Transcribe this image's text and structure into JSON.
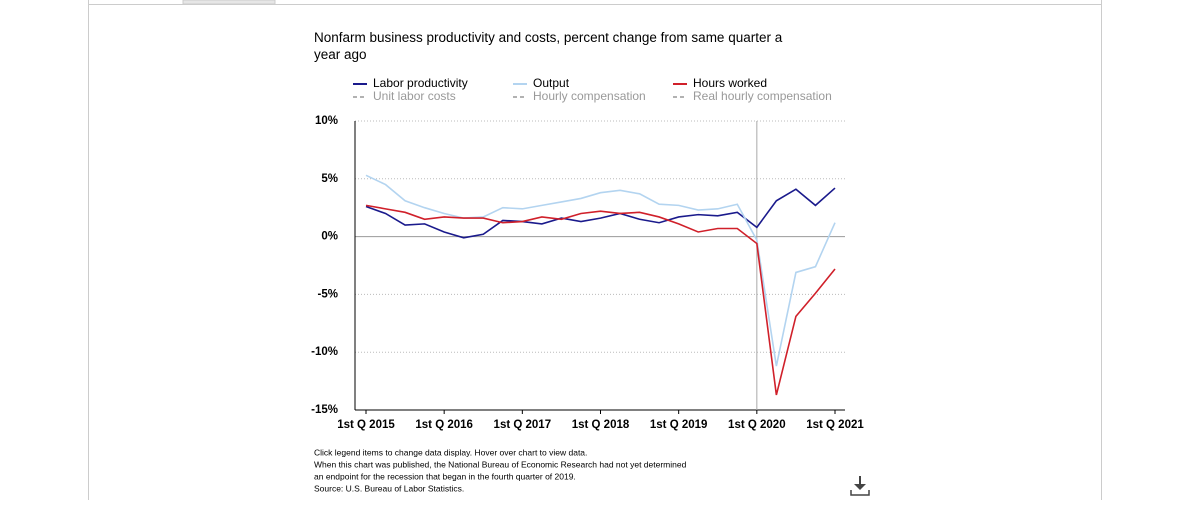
{
  "chart_data": {
    "type": "line",
    "title": "Nonfarm business productivity and costs, percent change from same quarter a year ago",
    "categories": [
      "1st Q 2015",
      null,
      null,
      null,
      "1st Q 2016",
      null,
      null,
      null,
      "1st Q 2017",
      null,
      null,
      null,
      "1st Q 2018",
      null,
      null,
      null,
      "1st Q 2019",
      null,
      null,
      null,
      "1st Q 2020",
      null,
      null,
      null,
      "1st Q 2021"
    ],
    "series": [
      {
        "name": "Labor productivity",
        "color": "#1a1a8c",
        "values": [
          2.6,
          2.0,
          1.0,
          1.1,
          0.4,
          -0.1,
          0.2,
          1.4,
          1.3,
          1.1,
          1.6,
          1.3,
          1.6,
          2.0,
          1.5,
          1.2,
          1.7,
          1.9,
          1.8,
          2.1,
          0.8,
          3.1,
          4.1,
          2.7,
          4.2
        ]
      },
      {
        "name": "Output",
        "color": "#b3d4f0",
        "values": [
          5.3,
          4.5,
          3.1,
          2.5,
          2.0,
          1.6,
          1.7,
          2.5,
          2.4,
          2.7,
          3.0,
          3.3,
          3.8,
          4.0,
          3.7,
          2.8,
          2.7,
          2.3,
          2.4,
          2.8,
          -0.3,
          -11.2,
          -3.1,
          -2.6,
          1.2
        ]
      },
      {
        "name": "Hours worked",
        "color": "#d0202a",
        "values": [
          2.7,
          2.4,
          2.1,
          1.5,
          1.7,
          1.6,
          1.6,
          1.2,
          1.3,
          1.7,
          1.5,
          2.0,
          2.2,
          2.0,
          2.1,
          1.7,
          1.1,
          0.4,
          0.7,
          0.7,
          -0.6,
          -13.7,
          -6.9,
          -4.9,
          -2.8
        ]
      }
    ],
    "inactive_legend": [
      "Unit labor costs",
      "Hourly compensation",
      "Real hourly compensation"
    ],
    "inactive_color": "#999999",
    "recession_start": "1st Q 2020",
    "ylim": [
      -15,
      10
    ],
    "yticks": [
      {
        "value": -15,
        "label": "-15%"
      },
      {
        "value": -10,
        "label": "-10%"
      },
      {
        "value": -5,
        "label": "-5%"
      },
      {
        "value": 0,
        "label": "0%"
      },
      {
        "value": 5,
        "label": "5%"
      },
      {
        "value": 10,
        "label": "10%"
      }
    ],
    "grid": true,
    "notes": [
      "Click legend items to change data display. Hover over chart to view data.",
      "When this chart was published, the National Bureau of Economic Research had not yet determined",
      "an endpoint for the recession that began in the fourth quarter of 2019.",
      "Source: U.S. Bureau of Labor Statistics."
    ]
  }
}
